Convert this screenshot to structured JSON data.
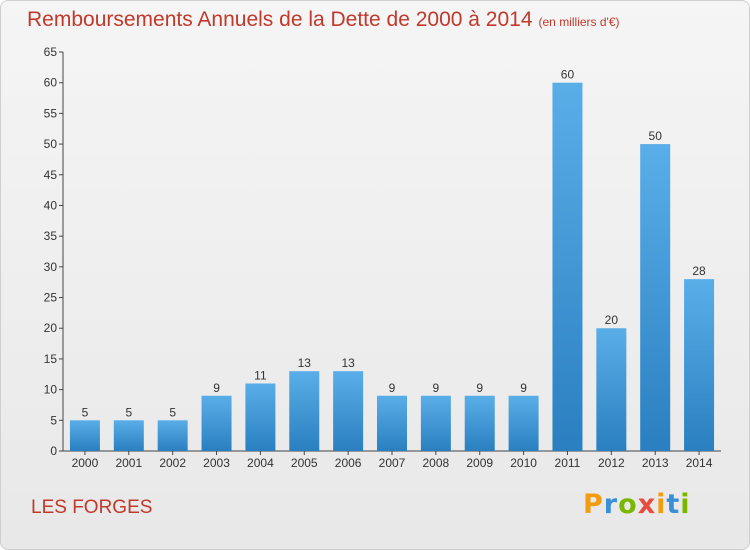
{
  "title": "Remboursements Annuels de la Dette de 2000 à 2014",
  "unit": "(en milliers d'€)",
  "commune": "LES FORGES",
  "logo": {
    "letters": [
      "P",
      "r",
      "o",
      "x",
      "i",
      "t",
      "i"
    ],
    "colors": [
      "#f39c12",
      "#3a8fd6",
      "#7ab800",
      "#e74c3c",
      "#f39c12",
      "#3a8fd6",
      "#7ab800"
    ]
  },
  "colors": {
    "bar_top": "#5aaee8",
    "bar_bottom": "#2a7fc0",
    "title": "#c0392b",
    "axis": "#444444"
  },
  "chart_data": {
    "type": "bar",
    "title": "Remboursements Annuels de la Dette de 2000 à 2014",
    "categories": [
      "2000",
      "2001",
      "2002",
      "2003",
      "2004",
      "2005",
      "2006",
      "2007",
      "2008",
      "2009",
      "2010",
      "2011",
      "2012",
      "2013",
      "2014"
    ],
    "values": [
      5,
      5,
      5,
      9,
      11,
      13,
      13,
      9,
      9,
      9,
      9,
      60,
      20,
      50,
      28
    ],
    "ylim": [
      0,
      65
    ],
    "yticks": [
      0,
      5,
      10,
      15,
      20,
      25,
      30,
      35,
      40,
      45,
      50,
      55,
      60,
      65
    ],
    "grid": false,
    "xlabel": "",
    "ylabel": ""
  }
}
